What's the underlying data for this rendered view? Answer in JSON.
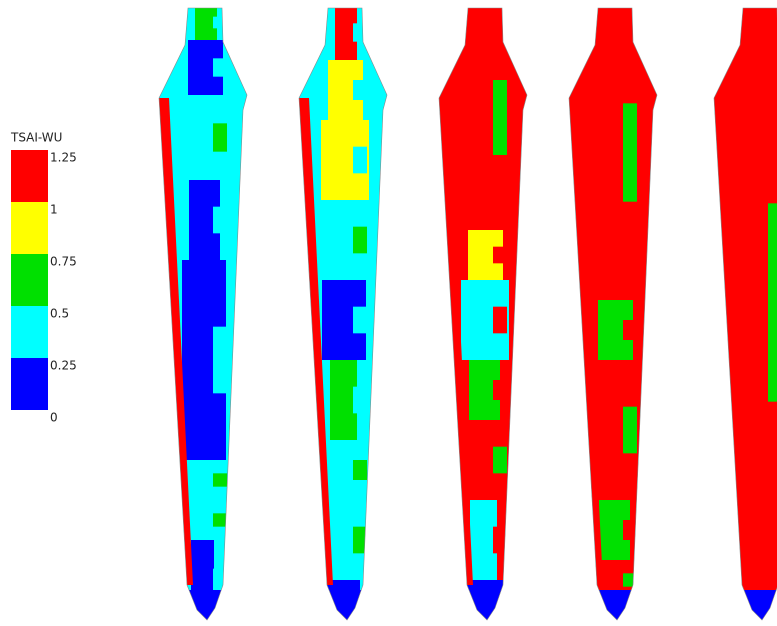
{
  "legend": {
    "title": "TSAI-WU",
    "labels": [
      "1.25",
      "1",
      "0.75",
      "0.5",
      "0.25",
      "0"
    ]
  }
}
